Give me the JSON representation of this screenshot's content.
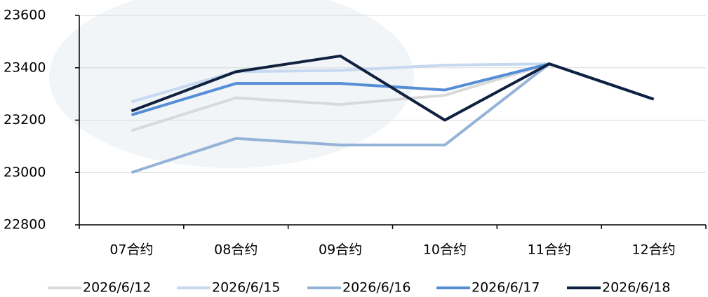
{
  "chart_data": {
    "type": "line",
    "categories": [
      "07合约",
      "08合约",
      "09合约",
      "10合约",
      "11合约",
      "12合约"
    ],
    "series": [
      {
        "name": "2026/6/12",
        "color": "#d9d9d9",
        "values": [
          23160,
          23285,
          23260,
          23295,
          23415,
          23280
        ]
      },
      {
        "name": "2026/6/15",
        "color": "#c6d9f1",
        "values": [
          23270,
          23385,
          23390,
          23410,
          23415,
          23280
        ]
      },
      {
        "name": "2026/6/16",
        "color": "#95b3d7",
        "values": [
          23000,
          23130,
          23105,
          23105,
          23415,
          23280
        ]
      },
      {
        "name": "2026/6/17",
        "color": "#558ed5",
        "values": [
          23220,
          23340,
          23340,
          23315,
          23415,
          23280
        ]
      },
      {
        "name": "2026/6/18",
        "color": "#0f213f",
        "values": [
          23235,
          23385,
          23445,
          23200,
          23415,
          23280
        ]
      }
    ],
    "ylim": [
      22800,
      23600
    ],
    "yticks": [
      22800,
      23000,
      23200,
      23400,
      23600
    ],
    "grid": true
  }
}
